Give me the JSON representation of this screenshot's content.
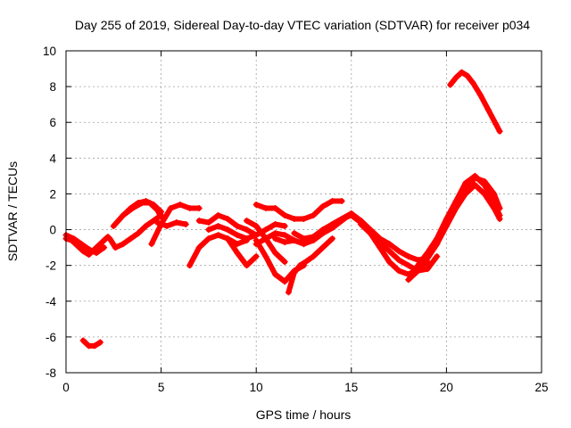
{
  "chart_data": {
    "type": "scatter",
    "title": "Day 255 of 2019, Sidereal Day-to-day VTEC variation (SDTVAR) for receiver p034",
    "xlabel": "GPS time / hours",
    "ylabel": "SDTVAR / TECUs",
    "xlim": [
      0,
      25
    ],
    "ylim": [
      -8,
      10
    ],
    "xticks": [
      0,
      5,
      10,
      15,
      20,
      25
    ],
    "yticks": [
      -8,
      -6,
      -4,
      -2,
      0,
      2,
      4,
      6,
      8,
      10
    ],
    "grid": true,
    "marker": "+",
    "series_color": "#ff0000",
    "series": [
      {
        "name": "track-01",
        "x": [
          0.0,
          0.3,
          0.6,
          0.9,
          1.2,
          1.5,
          1.8,
          2.0,
          2.2
        ],
        "y": [
          -0.5,
          -0.6,
          -0.9,
          -1.2,
          -1.4,
          -1.1,
          -0.8,
          -0.6,
          -0.4
        ]
      },
      {
        "name": "track-02",
        "x": [
          0.0,
          0.4,
          0.8,
          1.2,
          1.6,
          2.0
        ],
        "y": [
          -0.3,
          -0.5,
          -0.8,
          -1.1,
          -1.3,
          -1.0
        ]
      },
      {
        "name": "track-03",
        "x": [
          0.9,
          1.2,
          1.5,
          1.8
        ],
        "y": [
          -6.2,
          -6.5,
          -6.5,
          -6.3
        ]
      },
      {
        "name": "track-04",
        "x": [
          2.3,
          2.6,
          3.0,
          3.4,
          3.8,
          4.2,
          4.6,
          5.0
        ],
        "y": [
          -0.5,
          -1.0,
          -0.8,
          -0.5,
          -0.2,
          0.2,
          0.5,
          0.8
        ]
      },
      {
        "name": "track-05",
        "x": [
          2.5,
          3.0,
          3.5,
          4.0,
          4.4,
          4.8,
          5.0
        ],
        "y": [
          0.2,
          0.8,
          1.2,
          1.5,
          1.5,
          1.1,
          0.7
        ]
      },
      {
        "name": "track-06",
        "x": [
          3.0,
          3.4,
          3.8,
          4.2,
          4.6,
          5.0
        ],
        "y": [
          0.8,
          1.2,
          1.5,
          1.6,
          1.4,
          1.0
        ]
      },
      {
        "name": "track-07",
        "x": [
          4.5,
          5.0,
          5.5,
          6.0,
          6.5,
          7.0
        ],
        "y": [
          -0.8,
          0.3,
          1.2,
          1.4,
          1.2,
          1.2
        ]
      },
      {
        "name": "track-08",
        "x": [
          4.8,
          5.3,
          5.8,
          6.3
        ],
        "y": [
          0.4,
          0.2,
          0.4,
          0.3
        ]
      },
      {
        "name": "track-09",
        "x": [
          6.5,
          7.0,
          7.5,
          8.0,
          8.5,
          9.0,
          9.5
        ],
        "y": [
          -2.0,
          -1.0,
          -0.5,
          -0.3,
          -0.5,
          -0.8,
          -0.6
        ]
      },
      {
        "name": "track-10",
        "x": [
          7.0,
          7.5,
          8.0,
          8.5,
          9.0,
          9.5,
          10.0
        ],
        "y": [
          0.5,
          0.4,
          0.8,
          0.6,
          0.2,
          0.0,
          -0.3
        ]
      },
      {
        "name": "track-11",
        "x": [
          7.5,
          8.0,
          8.5,
          9.0,
          9.5,
          10.0,
          10.5,
          11.0,
          11.5
        ],
        "y": [
          0.0,
          0.2,
          0.0,
          -0.3,
          -0.5,
          -0.3,
          0.0,
          0.3,
          0.2
        ]
      },
      {
        "name": "track-12",
        "x": [
          8.5,
          9.0,
          9.5,
          10.0
        ],
        "y": [
          -0.5,
          -1.3,
          -2.0,
          -1.5
        ]
      },
      {
        "name": "track-13",
        "x": [
          9.5,
          10.0,
          10.5,
          11.0,
          11.5
        ],
        "y": [
          0.5,
          0.2,
          -0.5,
          -1.3,
          -1.8
        ]
      },
      {
        "name": "track-14",
        "x": [
          10.0,
          10.5,
          11.0,
          11.5,
          12.0,
          12.5
        ],
        "y": [
          -0.6,
          -1.5,
          -2.5,
          -2.9,
          -2.3,
          -2.0
        ]
      },
      {
        "name": "track-15",
        "x": [
          11.7,
          12.0,
          12.3,
          12.6,
          13.0,
          13.5,
          14.0
        ],
        "y": [
          -3.5,
          -2.4,
          -2.0,
          -1.8,
          -1.5,
          -1.0,
          -0.5
        ]
      },
      {
        "name": "track-16",
        "x": [
          10.0,
          10.5,
          11.0,
          11.5,
          12.0,
          12.5,
          13.0,
          13.5,
          14.0,
          14.5
        ],
        "y": [
          1.4,
          1.2,
          1.2,
          0.8,
          0.6,
          0.6,
          0.8,
          1.3,
          1.6,
          1.6
        ]
      },
      {
        "name": "track-17",
        "x": [
          10.0,
          10.5,
          11.0,
          11.5,
          12.0,
          12.5,
          13.0,
          13.5,
          14.0,
          14.5,
          15.0
        ],
        "y": [
          -0.8,
          -0.5,
          -0.2,
          -0.3,
          -0.6,
          -0.8,
          -0.6,
          -0.2,
          0.3,
          0.6,
          0.9
        ]
      },
      {
        "name": "track-18",
        "x": [
          11.0,
          11.5,
          12.0,
          12.5,
          13.0,
          13.5,
          14.0,
          14.5,
          15.0,
          15.5
        ],
        "y": [
          -0.5,
          -0.7,
          -0.6,
          -0.8,
          -0.4,
          0.0,
          0.3,
          0.6,
          0.8,
          0.5
        ]
      },
      {
        "name": "track-19",
        "x": [
          12.0,
          12.5,
          13.0,
          13.5,
          14.0,
          14.5,
          15.0
        ],
        "y": [
          -0.2,
          -0.5,
          -0.4,
          -0.2,
          0.1,
          0.5,
          0.9
        ]
      },
      {
        "name": "track-20",
        "x": [
          14.5,
          15.0,
          15.5,
          16.0,
          16.5,
          17.0,
          17.5,
          18.0,
          18.5,
          19.0,
          19.5
        ],
        "y": [
          0.6,
          0.9,
          0.5,
          0.0,
          -0.5,
          -0.8,
          -1.2,
          -1.5,
          -1.7,
          -1.6,
          -0.8
        ]
      },
      {
        "name": "track-21",
        "x": [
          15.0,
          15.5,
          16.0,
          16.5,
          17.0,
          17.5,
          18.0,
          18.5,
          19.0
        ],
        "y": [
          0.8,
          0.4,
          -0.2,
          -1.0,
          -1.8,
          -2.3,
          -2.5,
          -2.2,
          -1.8
        ]
      },
      {
        "name": "track-22",
        "x": [
          15.5,
          16.0,
          16.5,
          17.0,
          17.5,
          18.0,
          18.5,
          19.0,
          19.5
        ],
        "y": [
          0.3,
          -0.2,
          -0.7,
          -1.2,
          -1.7,
          -2.0,
          -2.3,
          -2.2,
          -1.5
        ]
      },
      {
        "name": "track-23",
        "x": [
          18.0,
          18.5,
          19.0,
          19.5,
          20.0,
          20.5,
          21.0,
          21.5,
          22.0,
          22.5,
          22.8
        ],
        "y": [
          -2.8,
          -2.3,
          -1.5,
          -0.6,
          0.5,
          1.5,
          2.3,
          2.9,
          2.7,
          2.0,
          1.2
        ]
      },
      {
        "name": "track-24",
        "x": [
          18.5,
          19.0,
          19.5,
          20.0,
          20.5,
          21.0,
          21.5,
          22.0,
          22.5,
          22.8
        ],
        "y": [
          -2.0,
          -1.3,
          -0.5,
          0.6,
          1.6,
          2.6,
          3.0,
          2.5,
          1.5,
          0.8
        ]
      },
      {
        "name": "track-25",
        "x": [
          19.0,
          19.5,
          20.0,
          20.5,
          21.0,
          21.5,
          22.0,
          22.5,
          22.8
        ],
        "y": [
          -1.6,
          -0.8,
          0.2,
          1.2,
          2.0,
          2.5,
          2.0,
          1.2,
          0.6
        ]
      },
      {
        "name": "track-26",
        "x": [
          20.2,
          20.5,
          20.8,
          21.1,
          21.4,
          21.8,
          22.2,
          22.6,
          22.8
        ],
        "y": [
          8.1,
          8.5,
          8.8,
          8.6,
          8.2,
          7.5,
          6.7,
          5.9,
          5.5
        ]
      }
    ]
  }
}
